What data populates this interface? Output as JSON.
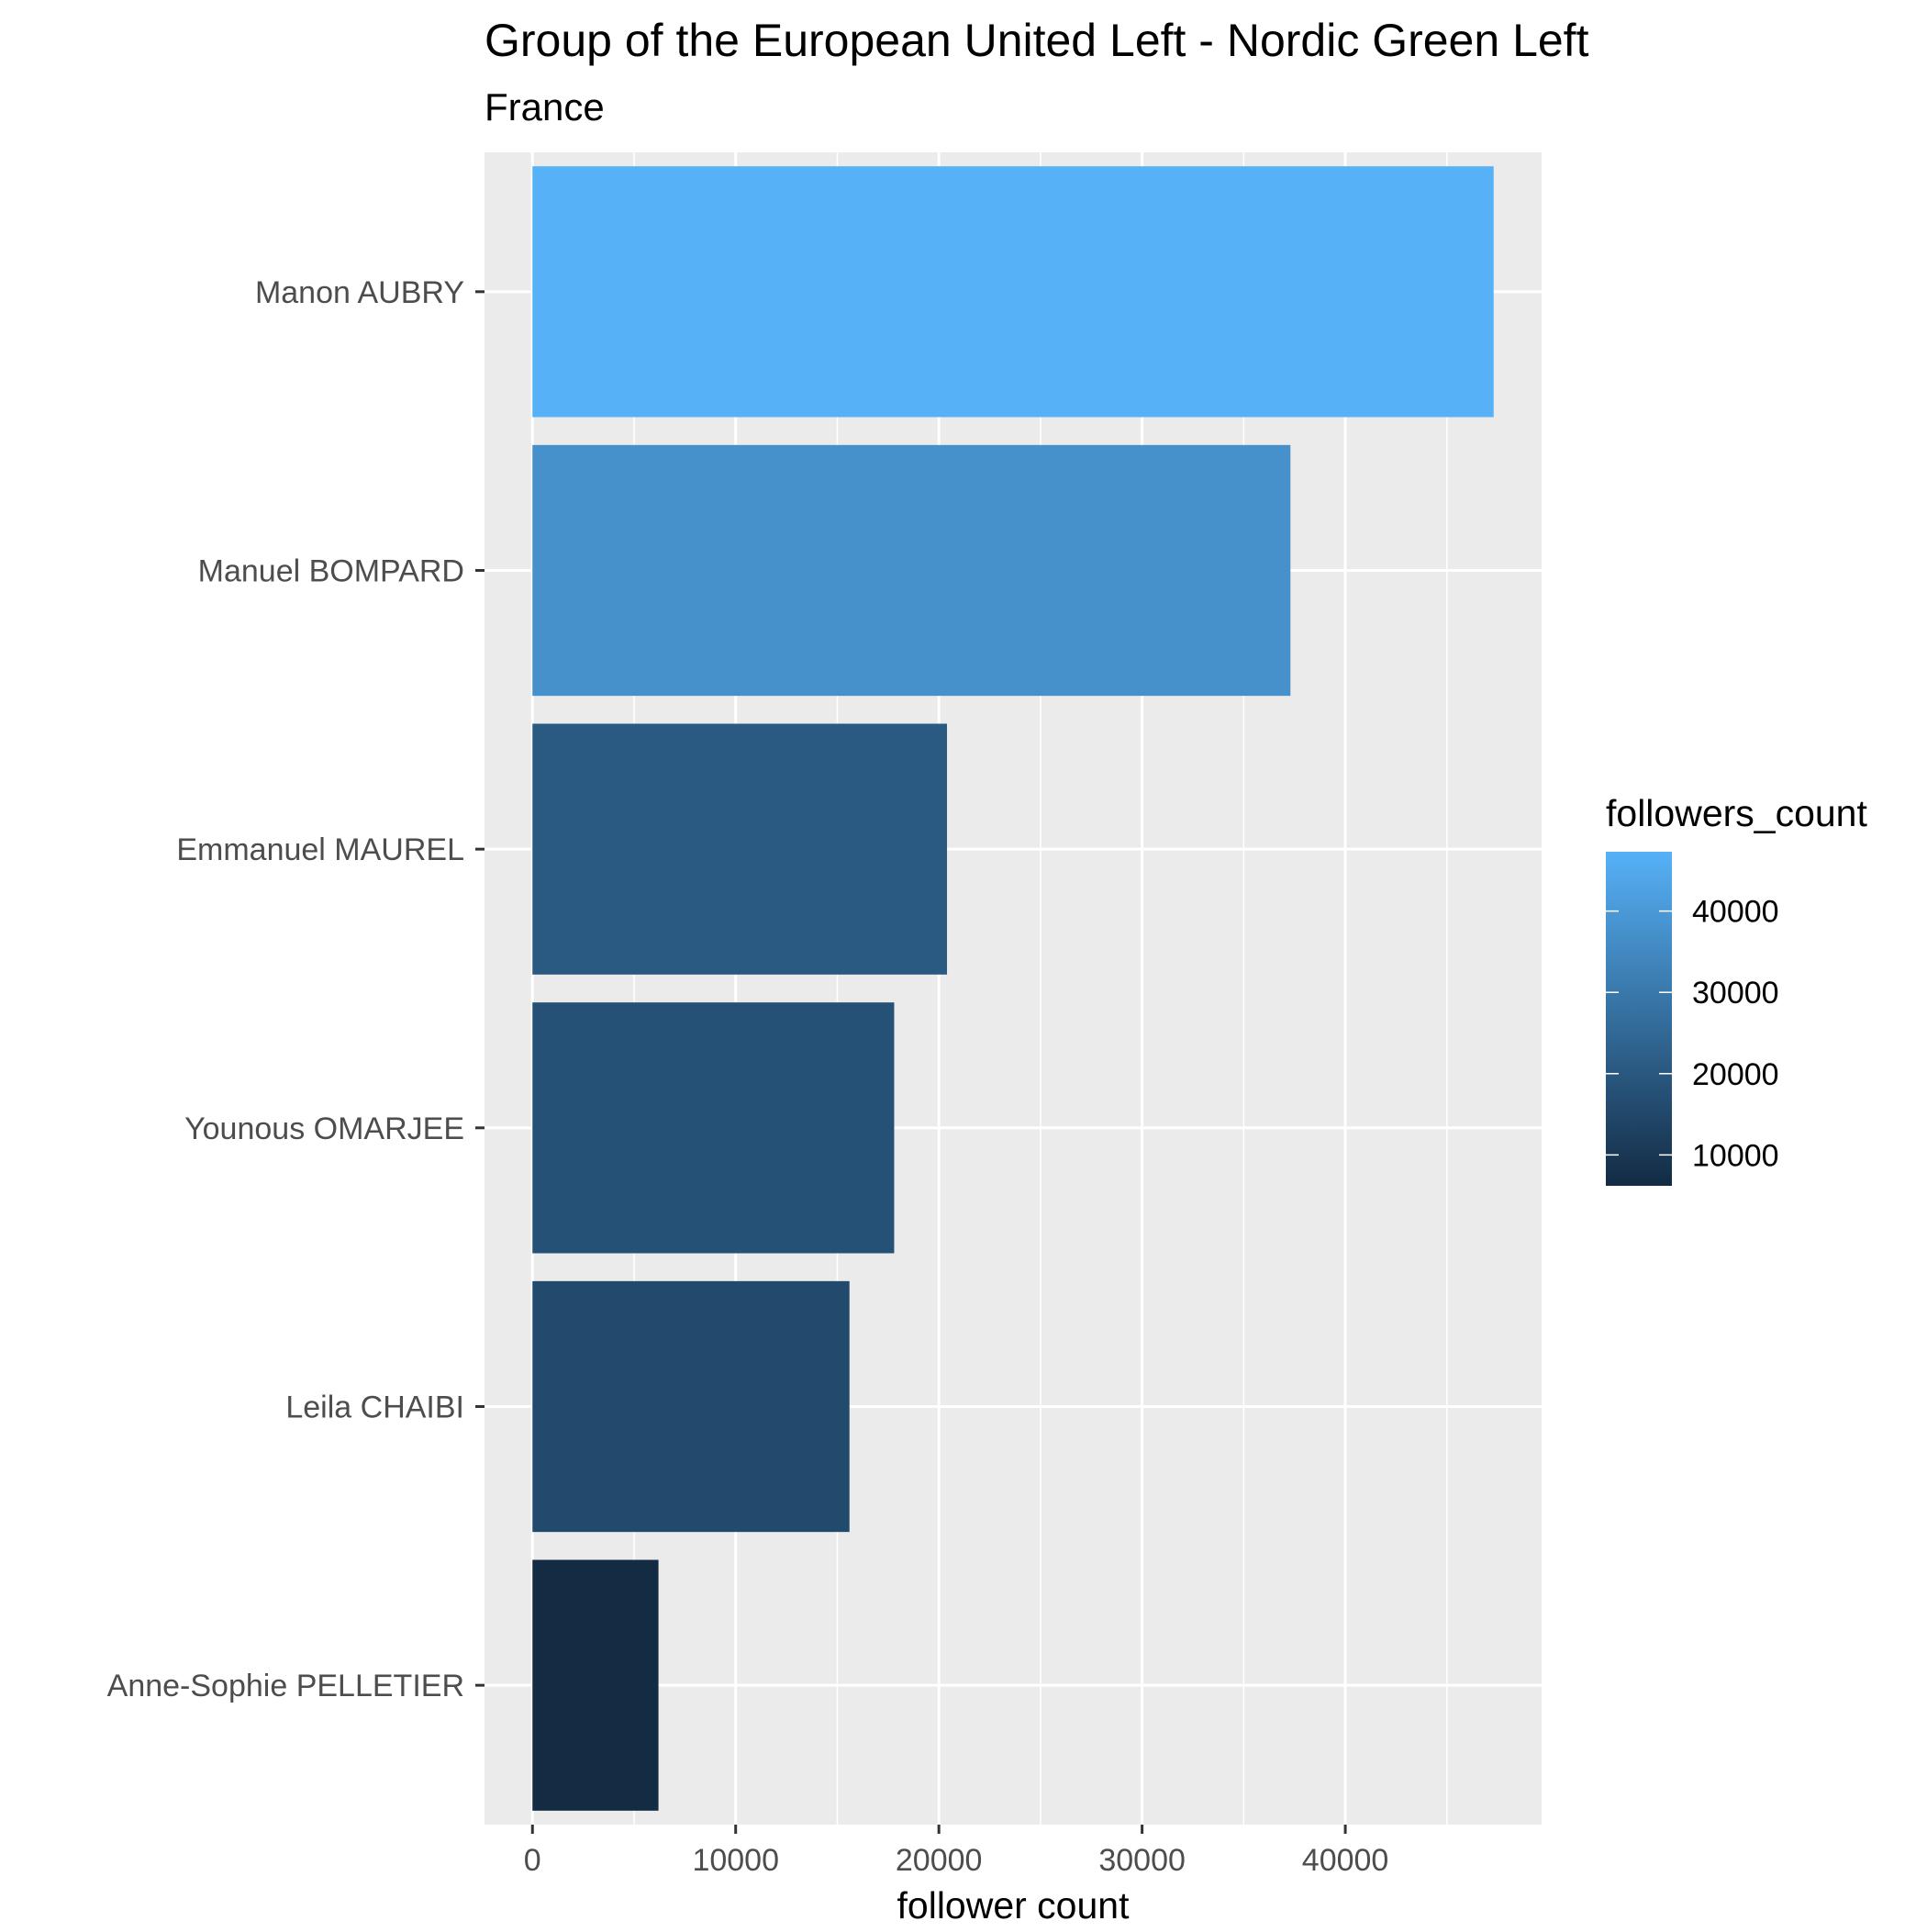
{
  "chart_data": {
    "type": "bar",
    "orientation": "horizontal",
    "title": "Group of the European United Left - Nordic Green Left",
    "subtitle": "France",
    "xlabel": "follower count",
    "ylabel": "",
    "categories": [
      "Manon AUBRY",
      "Manuel BOMPARD",
      "Emmanuel MAUREL",
      "Younous OMARJEE",
      "Leila CHAIBI",
      "Anne-Sophie PELLETIER"
    ],
    "values": [
      47300,
      37300,
      20400,
      17800,
      15600,
      6200
    ],
    "xlim": [
      -2360,
      49660
    ],
    "x_ticks": [
      0,
      10000,
      20000,
      30000,
      40000
    ],
    "x_tick_labels": [
      "0",
      "10000",
      "20000",
      "30000",
      "40000"
    ],
    "grid": true,
    "panel_background": "#ebebeb",
    "grid_color": "#ffffff",
    "legend": {
      "title": "followers_count",
      "position": "right",
      "type": "colorbar",
      "range": [
        6200,
        47300
      ],
      "ticks": [
        10000,
        20000,
        30000,
        40000
      ],
      "tick_labels": [
        "10000",
        "20000",
        "30000",
        "40000"
      ],
      "low_color": "#132b43",
      "high_color": "#56b1f7"
    }
  }
}
